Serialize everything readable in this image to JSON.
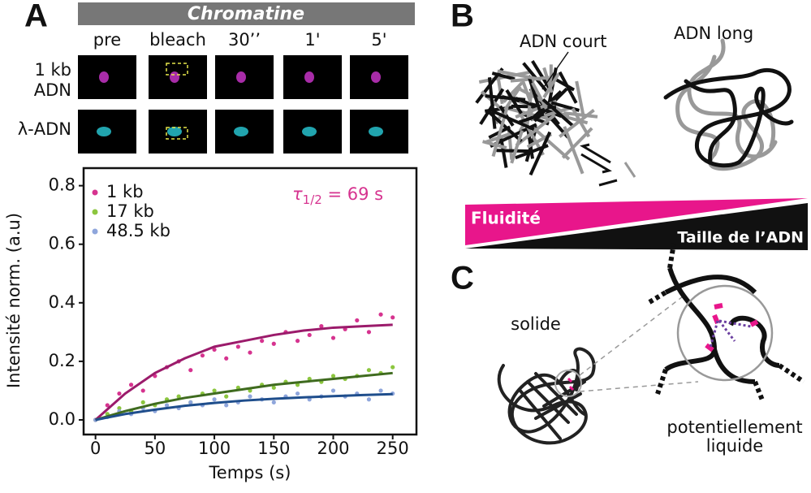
{
  "panels": {
    "A": {
      "label": "A",
      "header": "Chromatine",
      "timepoints": [
        "pre",
        "bleach",
        "30’’",
        "1'",
        "5'"
      ],
      "rows": [
        [
          "1 kb",
          "ADN"
        ],
        [
          "λ-ADN"
        ]
      ]
    },
    "B": {
      "label": "B",
      "short_dna": "ADN court",
      "long_dna": "ADN long",
      "fluidity": "Fluidité",
      "size": "Taille de l’ADN"
    },
    "C": {
      "label": "C",
      "solid": "solide",
      "liquid": [
        "potentiellement",
        "liquide"
      ]
    }
  },
  "chart_data": {
    "type": "scatter",
    "x_label": "Temps (s)",
    "y_label": "Intensité  norm. (a.u)",
    "annotation": {
      "symbol": "τ",
      "subscript": "1/2",
      "text": " = 69 s",
      "color": "#d6338f"
    },
    "xlim": [
      -10,
      270
    ],
    "ylim": [
      -0.05,
      0.86
    ],
    "xticks": [
      0,
      50,
      100,
      150,
      200,
      250
    ],
    "yticks": [
      {
        "value": 0,
        "label": "0.0"
      },
      {
        "value": 0.2,
        "label": "0.2"
      },
      {
        "value": 0.4,
        "label": "0.4"
      },
      {
        "value": 0.6,
        "label": "0.6"
      },
      {
        "value": 0.8,
        "label": "0.8"
      }
    ],
    "legend": "upper left",
    "series": [
      {
        "name": "1 kb",
        "color": "#d6338f",
        "x": [
          0,
          10,
          20,
          30,
          40,
          50,
          60,
          70,
          80,
          90,
          100,
          110,
          120,
          130,
          140,
          150,
          160,
          170,
          180,
          190,
          200,
          210,
          220,
          230,
          240,
          250
        ],
        "values": [
          0.0,
          0.05,
          0.09,
          0.12,
          0.1,
          0.15,
          0.18,
          0.2,
          0.17,
          0.22,
          0.24,
          0.21,
          0.25,
          0.23,
          0.27,
          0.26,
          0.3,
          0.27,
          0.29,
          0.32,
          0.28,
          0.31,
          0.34,
          0.3,
          0.36,
          0.35
        ]
      },
      {
        "name": "17 kb",
        "color": "#8cc63f",
        "x": [
          0,
          10,
          20,
          30,
          40,
          50,
          60,
          70,
          80,
          90,
          100,
          110,
          120,
          130,
          140,
          150,
          160,
          170,
          180,
          190,
          200,
          210,
          220,
          230,
          240,
          250
        ],
        "values": [
          0,
          0.02,
          0.04,
          0.03,
          0.06,
          0.05,
          0.07,
          0.08,
          0.06,
          0.09,
          0.1,
          0.08,
          0.11,
          0.1,
          0.12,
          0.11,
          0.13,
          0.12,
          0.14,
          0.13,
          0.15,
          0.14,
          0.15,
          0.17,
          0.16,
          0.18
        ]
      },
      {
        "name": "48.5 kb",
        "color": "#8fa6dc",
        "x": [
          0,
          10,
          20,
          30,
          40,
          50,
          60,
          70,
          80,
          90,
          100,
          110,
          120,
          130,
          140,
          150,
          160,
          170,
          180,
          190,
          200,
          210,
          220,
          230,
          240,
          250
        ],
        "values": [
          0,
          0.01,
          0.03,
          0.02,
          0.04,
          0.03,
          0.05,
          0.04,
          0.06,
          0.05,
          0.07,
          0.05,
          0.06,
          0.08,
          0.07,
          0.06,
          0.08,
          0.09,
          0.07,
          0.08,
          0.1,
          0.08,
          0.09,
          0.07,
          0.1,
          0.09
        ]
      },
      {
        "style": "line",
        "color": "#9b1b6b",
        "x": [
          0,
          25,
          50,
          75,
          100,
          125,
          150,
          175,
          200,
          225,
          250
        ],
        "values": [
          0,
          0.09,
          0.16,
          0.21,
          0.25,
          0.27,
          0.29,
          0.305,
          0.315,
          0.32,
          0.325
        ]
      },
      {
        "style": "line",
        "color": "#3f6b1f",
        "x": [
          0,
          25,
          50,
          75,
          100,
          125,
          150,
          175,
          200,
          225,
          250
        ],
        "values": [
          0,
          0.03,
          0.055,
          0.075,
          0.09,
          0.105,
          0.12,
          0.13,
          0.14,
          0.15,
          0.16
        ]
      },
      {
        "style": "line",
        "color": "#1f4e8c",
        "x": [
          0,
          25,
          50,
          75,
          100,
          125,
          150,
          175,
          200,
          225,
          250
        ],
        "values": [
          0,
          0.02,
          0.035,
          0.048,
          0.058,
          0.066,
          0.072,
          0.077,
          0.081,
          0.085,
          0.088
        ]
      }
    ]
  }
}
